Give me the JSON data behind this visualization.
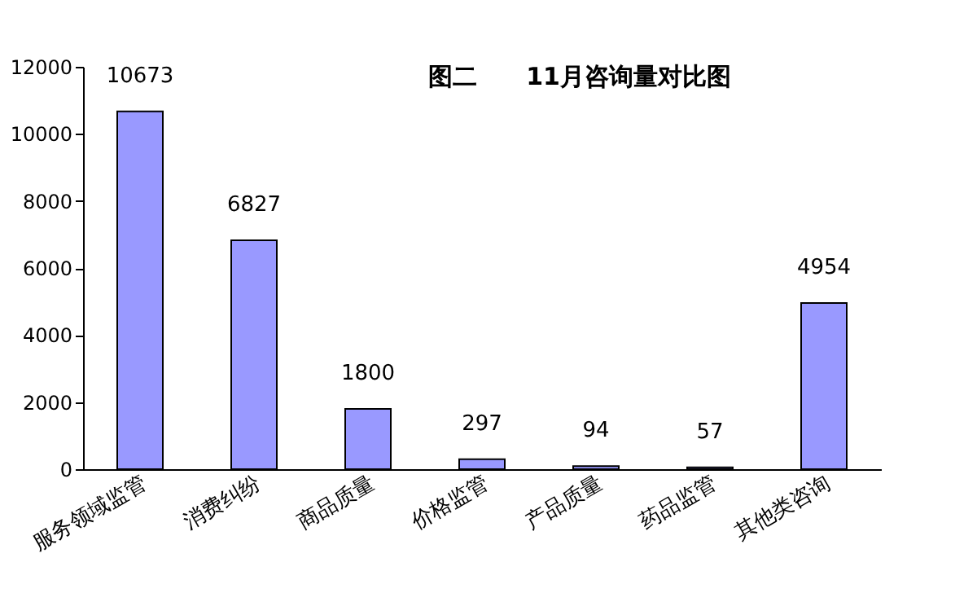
{
  "chart_data": {
    "type": "bar",
    "title": "图二　　11月咨询量对比图",
    "categories": [
      "服务领域监管",
      "消费纠纷",
      "商品质量",
      "价格监管",
      "产品质量",
      "药品监管",
      "其他类咨询"
    ],
    "values": [
      10673,
      6827,
      1800,
      297,
      94,
      57,
      4954
    ],
    "color": "#9999ff",
    "ylim": [
      0,
      12000
    ],
    "yticks": [
      0,
      2000,
      4000,
      6000,
      8000,
      10000,
      12000
    ],
    "data_labels": true,
    "grid": false
  }
}
